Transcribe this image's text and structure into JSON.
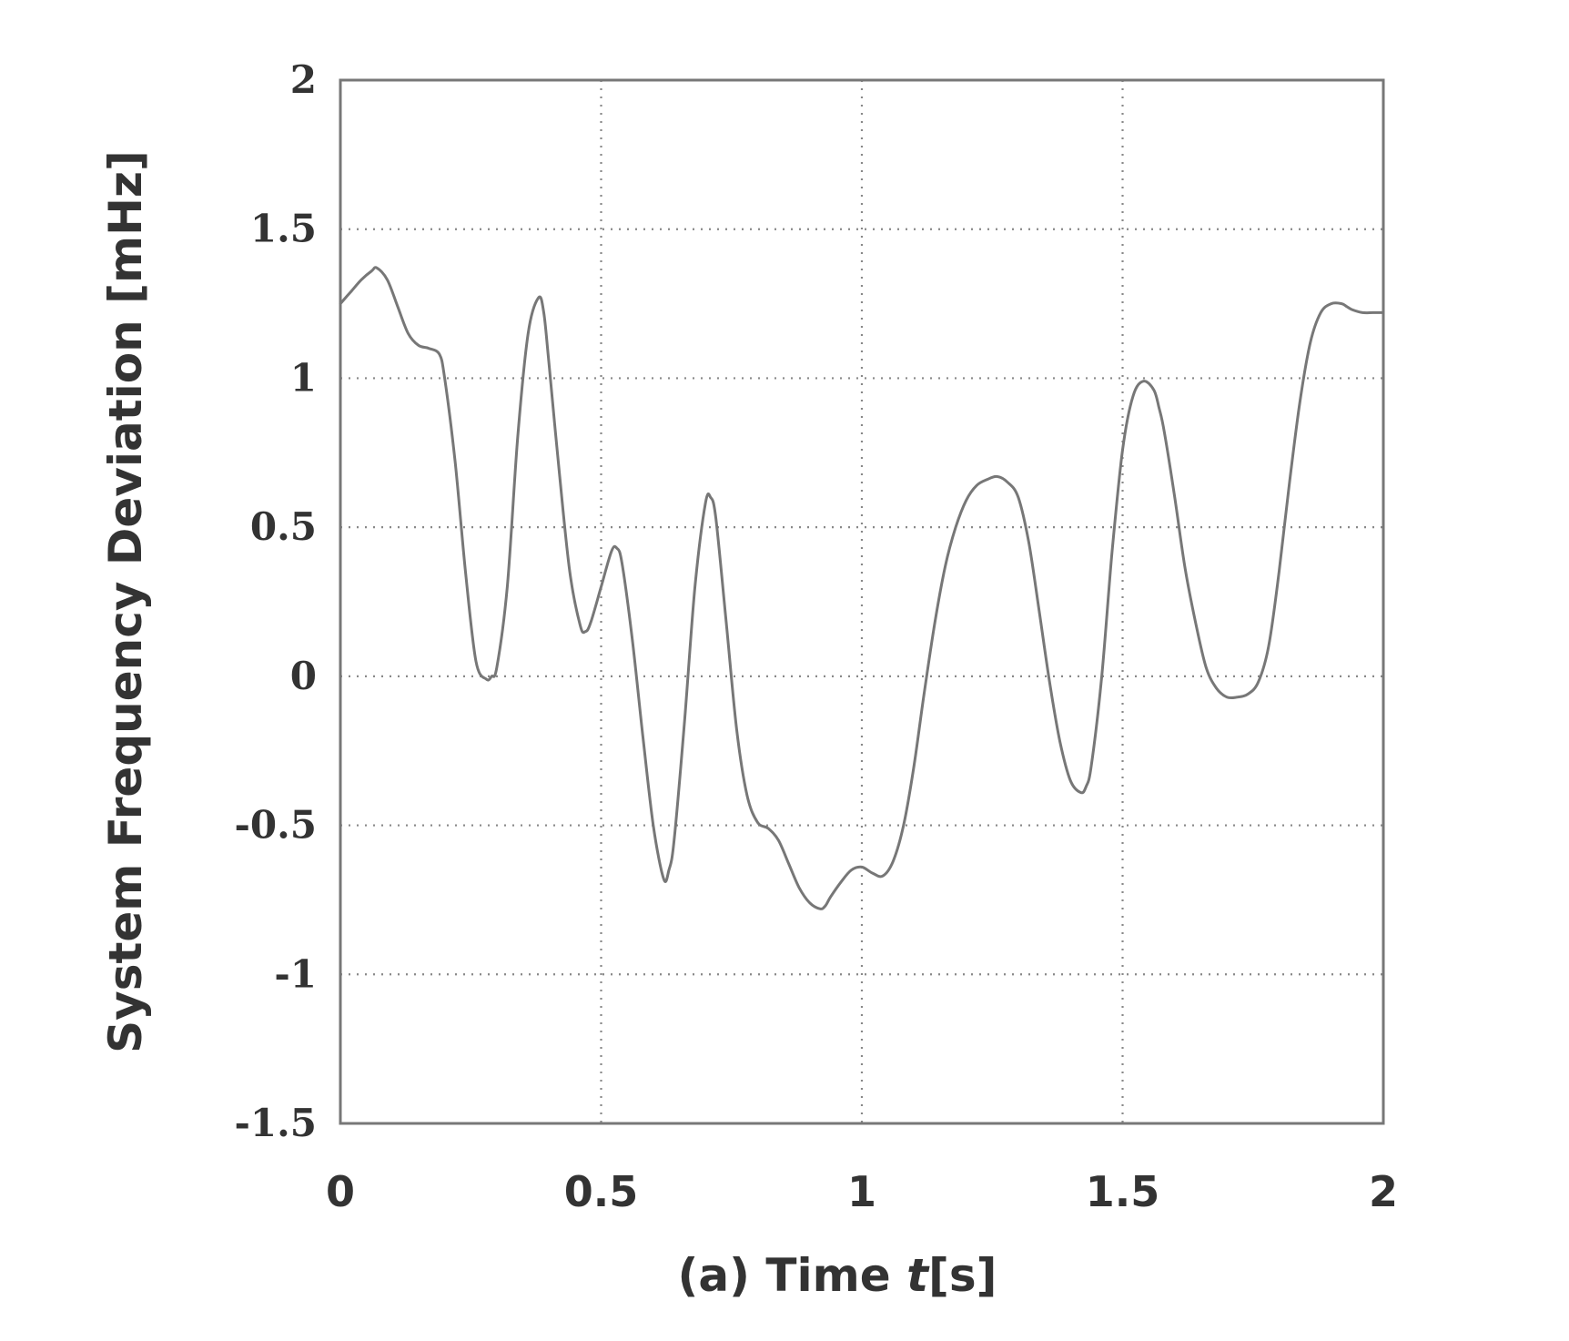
{
  "chart_data": {
    "type": "line",
    "title": "",
    "xlabel": "(a) Time ",
    "xlabel_italic": "t",
    "xlabel_unit": "[s]",
    "ylabel": "System Frequency Deviation [mHz]",
    "xlim": [
      0,
      2
    ],
    "ylim": [
      -1.5,
      2
    ],
    "xticks": [
      0,
      0.5,
      1,
      1.5,
      2
    ],
    "xtick_labels": [
      "0",
      "0.5",
      "1",
      "1.5",
      "2"
    ],
    "yticks": [
      -1.5,
      -1,
      -0.5,
      0,
      0.5,
      1,
      1.5,
      2
    ],
    "ytick_labels": [
      "-1.5",
      "-1",
      "-0.5",
      "0",
      "0.5",
      "1",
      "1.5",
      "2"
    ],
    "grid": true,
    "series": [
      {
        "x": [
          0,
          0.02,
          0.04,
          0.06,
          0.07,
          0.09,
          0.11,
          0.13,
          0.15,
          0.17,
          0.19,
          0.2,
          0.22,
          0.24,
          0.26,
          0.28,
          0.29,
          0.3,
          0.32,
          0.34,
          0.36,
          0.38,
          0.39,
          0.4,
          0.42,
          0.44,
          0.46,
          0.47,
          0.48,
          0.5,
          0.52,
          0.53,
          0.54,
          0.56,
          0.58,
          0.6,
          0.62,
          0.63,
          0.64,
          0.66,
          0.68,
          0.7,
          0.71,
          0.72,
          0.74,
          0.76,
          0.78,
          0.8,
          0.82,
          0.84,
          0.86,
          0.88,
          0.9,
          0.92,
          0.93,
          0.94,
          0.96,
          0.98,
          1.0,
          1.02,
          1.04,
          1.06,
          1.08,
          1.1,
          1.12,
          1.14,
          1.16,
          1.18,
          1.2,
          1.22,
          1.24,
          1.26,
          1.28,
          1.3,
          1.32,
          1.34,
          1.36,
          1.38,
          1.4,
          1.42,
          1.43,
          1.44,
          1.46,
          1.48,
          1.5,
          1.52,
          1.54,
          1.56,
          1.57,
          1.58,
          1.6,
          1.62,
          1.64,
          1.66,
          1.68,
          1.7,
          1.72,
          1.74,
          1.76,
          1.78,
          1.8,
          1.82,
          1.84,
          1.86,
          1.88,
          1.9,
          1.92,
          1.93,
          1.94,
          1.96,
          1.98,
          2.0
        ],
        "y": [
          1.25,
          1.29,
          1.33,
          1.36,
          1.37,
          1.33,
          1.24,
          1.15,
          1.11,
          1.1,
          1.08,
          1.0,
          0.72,
          0.35,
          0.05,
          -0.01,
          0.0,
          0.03,
          0.3,
          0.8,
          1.15,
          1.27,
          1.22,
          1.05,
          0.68,
          0.35,
          0.17,
          0.15,
          0.18,
          0.3,
          0.42,
          0.43,
          0.38,
          0.12,
          -0.2,
          -0.5,
          -0.68,
          -0.65,
          -0.55,
          -0.15,
          0.3,
          0.58,
          0.6,
          0.53,
          0.18,
          -0.18,
          -0.4,
          -0.49,
          -0.51,
          -0.55,
          -0.63,
          -0.71,
          -0.76,
          -0.78,
          -0.77,
          -0.74,
          -0.69,
          -0.65,
          -0.64,
          -0.66,
          -0.67,
          -0.62,
          -0.5,
          -0.3,
          -0.05,
          0.18,
          0.37,
          0.5,
          0.59,
          0.64,
          0.66,
          0.67,
          0.65,
          0.6,
          0.45,
          0.22,
          -0.02,
          -0.22,
          -0.35,
          -0.39,
          -0.37,
          -0.3,
          0.0,
          0.42,
          0.76,
          0.94,
          0.99,
          0.96,
          0.9,
          0.82,
          0.6,
          0.36,
          0.18,
          0.03,
          -0.04,
          -0.07,
          -0.07,
          -0.06,
          -0.02,
          0.1,
          0.35,
          0.65,
          0.92,
          1.12,
          1.22,
          1.25,
          1.25,
          1.24,
          1.23,
          1.22,
          1.22,
          1.22
        ]
      }
    ]
  }
}
